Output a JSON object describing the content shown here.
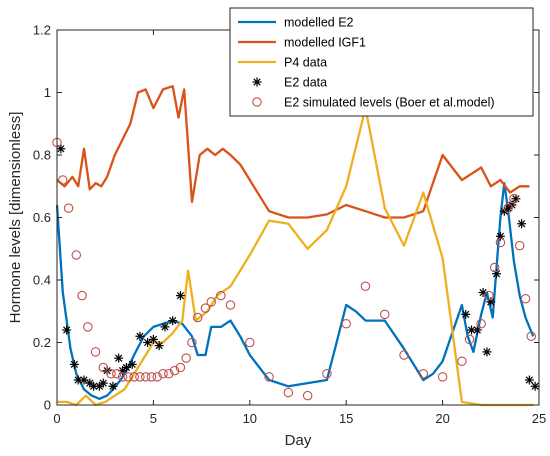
{
  "chart_data": {
    "type": "line",
    "xlabel": "Day",
    "ylabel": "Hormone levels [dimensionless]",
    "xlim": [
      0,
      25
    ],
    "ylim": [
      0,
      1.2
    ],
    "xticks": [
      0,
      5,
      10,
      15,
      20,
      25
    ],
    "yticks": [
      0,
      0.2,
      0.4,
      0.6,
      0.8,
      1,
      1.2
    ],
    "ytick_labels": [
      "0",
      "0.2",
      "0.4",
      "0.6",
      "0.8",
      "1",
      "1.2"
    ],
    "grid": false,
    "legend_position": "top-right",
    "series": [
      {
        "name": "modelled E2",
        "kind": "line",
        "color": "#0072BD",
        "x": [
          0,
          0.3,
          0.7,
          1.0,
          1.4,
          1.8,
          2.2,
          2.6,
          2.9,
          3.3,
          3.7,
          4.0,
          4.5,
          5.0,
          5.5,
          6.0,
          6.5,
          7.0,
          7.3,
          7.7,
          8.0,
          8.5,
          9.0,
          9.5,
          10.0,
          10.5,
          11.0,
          12.0,
          13.0,
          14.0,
          14.5,
          15.0,
          15.5,
          16.0,
          17.0,
          18.0,
          19.0,
          19.5,
          20.0,
          20.5,
          21.0,
          21.3,
          21.6,
          22.0,
          22.3,
          22.6,
          23.0,
          23.2,
          23.4,
          23.7,
          24.0,
          24.3,
          24.7
        ],
        "y": [
          0.64,
          0.36,
          0.18,
          0.1,
          0.05,
          0.03,
          0.02,
          0.03,
          0.05,
          0.08,
          0.12,
          0.16,
          0.22,
          0.25,
          0.26,
          0.27,
          0.26,
          0.22,
          0.16,
          0.16,
          0.25,
          0.25,
          0.27,
          0.22,
          0.16,
          0.12,
          0.08,
          0.06,
          0.07,
          0.08,
          0.2,
          0.32,
          0.3,
          0.27,
          0.27,
          0.18,
          0.08,
          0.1,
          0.14,
          0.23,
          0.32,
          0.22,
          0.17,
          0.29,
          0.36,
          0.28,
          0.6,
          0.71,
          0.62,
          0.46,
          0.35,
          0.28,
          0.22
        ]
      },
      {
        "name": "modelled IGF1",
        "kind": "line",
        "color": "#D95319",
        "x": [
          0,
          0.4,
          0.8,
          1.1,
          1.4,
          1.7,
          2.0,
          2.3,
          2.6,
          3.0,
          3.4,
          3.8,
          4.2,
          4.6,
          5.0,
          5.5,
          6.0,
          6.3,
          6.6,
          7.0,
          7.4,
          7.8,
          8.2,
          8.6,
          9.0,
          9.5,
          10.0,
          11.0,
          12.0,
          13.0,
          14.0,
          15.0,
          16.0,
          17.0,
          18.0,
          19.0,
          20.0,
          20.5,
          21.0,
          21.5,
          22.0,
          22.5,
          23.0,
          23.5,
          24.0,
          24.5
        ],
        "y": [
          0.72,
          0.7,
          0.73,
          0.7,
          0.82,
          0.69,
          0.71,
          0.7,
          0.73,
          0.8,
          0.85,
          0.9,
          1.0,
          1.01,
          0.95,
          1.01,
          1.02,
          0.92,
          1.01,
          0.65,
          0.8,
          0.82,
          0.8,
          0.82,
          0.8,
          0.77,
          0.72,
          0.62,
          0.6,
          0.6,
          0.61,
          0.64,
          0.62,
          0.6,
          0.6,
          0.62,
          0.8,
          0.76,
          0.72,
          0.74,
          0.76,
          0.7,
          0.72,
          0.68,
          0.7,
          0.7
        ]
      },
      {
        "name": "P4 data",
        "kind": "line",
        "color": "#EDB120",
        "x": [
          0,
          0.5,
          1.0,
          1.5,
          2.0,
          2.5,
          3.0,
          3.5,
          4.0,
          4.5,
          5.0,
          5.5,
          6.0,
          6.5,
          6.8,
          7.2,
          7.8,
          8.3,
          9.0,
          10.0,
          11.0,
          12.0,
          13.0,
          14.0,
          15.0,
          16.0,
          17.0,
          18.0,
          19.0,
          20.0,
          21.0,
          22.0,
          23.0,
          24.0,
          24.7
        ],
        "y": [
          0.01,
          0.01,
          0.0,
          0.03,
          0.0,
          0.01,
          0.03,
          0.05,
          0.1,
          0.15,
          0.2,
          0.2,
          0.23,
          0.27,
          0.43,
          0.27,
          0.3,
          0.35,
          0.38,
          0.48,
          0.59,
          0.58,
          0.5,
          0.56,
          0.7,
          0.95,
          0.63,
          0.51,
          0.68,
          0.47,
          0.01,
          0.0,
          0.0,
          0.0,
          0.0
        ]
      },
      {
        "name": "E2 data",
        "kind": "scatter",
        "marker": "asterisk",
        "color": "#000000",
        "x": [
          0.2,
          0.5,
          0.9,
          1.1,
          1.4,
          1.7,
          1.9,
          2.2,
          2.4,
          2.6,
          2.9,
          3.2,
          3.4,
          3.6,
          3.9,
          4.3,
          4.7,
          5.0,
          5.3,
          5.6,
          6.0,
          6.4,
          21.2,
          21.5,
          21.8,
          22.1,
          22.3,
          22.5,
          22.8,
          23.0,
          23.2,
          23.4,
          23.6,
          23.8,
          24.1,
          24.5,
          24.8
        ],
        "y": [
          0.82,
          0.24,
          0.13,
          0.08,
          0.08,
          0.07,
          0.06,
          0.06,
          0.07,
          0.11,
          0.06,
          0.15,
          0.11,
          0.12,
          0.13,
          0.22,
          0.2,
          0.21,
          0.19,
          0.25,
          0.27,
          0.35,
          0.29,
          0.24,
          0.24,
          0.36,
          0.17,
          0.33,
          0.42,
          0.54,
          0.62,
          0.63,
          0.64,
          0.66,
          0.58,
          0.08,
          0.06
        ]
      },
      {
        "name": "E2 simulated levels (Boer et al.model)",
        "kind": "scatter",
        "marker": "circle",
        "color": "#C0504D",
        "x": [
          0,
          0.3,
          0.6,
          1.0,
          1.3,
          1.6,
          2.0,
          2.4,
          2.8,
          3.1,
          3.4,
          3.7,
          4.0,
          4.3,
          4.6,
          4.9,
          5.2,
          5.5,
          5.8,
          6.1,
          6.4,
          6.7,
          7.0,
          7.3,
          7.7,
          8.0,
          8.5,
          9.0,
          10.0,
          11.0,
          12.0,
          13.0,
          14.0,
          15.0,
          16.0,
          17.0,
          18.0,
          19.0,
          20.0,
          21.0,
          21.4,
          22.0,
          22.4,
          22.7,
          23.0,
          23.4,
          23.7,
          24.0,
          24.3,
          24.6
        ],
        "y": [
          0.84,
          0.72,
          0.63,
          0.48,
          0.35,
          0.25,
          0.17,
          0.12,
          0.1,
          0.1,
          0.09,
          0.09,
          0.09,
          0.09,
          0.09,
          0.09,
          0.09,
          0.1,
          0.1,
          0.11,
          0.12,
          0.15,
          0.2,
          0.28,
          0.31,
          0.33,
          0.35,
          0.32,
          0.2,
          0.09,
          0.04,
          0.03,
          0.1,
          0.26,
          0.38,
          0.29,
          0.16,
          0.1,
          0.09,
          0.14,
          0.21,
          0.26,
          0.35,
          0.44,
          0.52,
          0.63,
          0.66,
          0.51,
          0.34,
          0.22
        ]
      }
    ]
  }
}
